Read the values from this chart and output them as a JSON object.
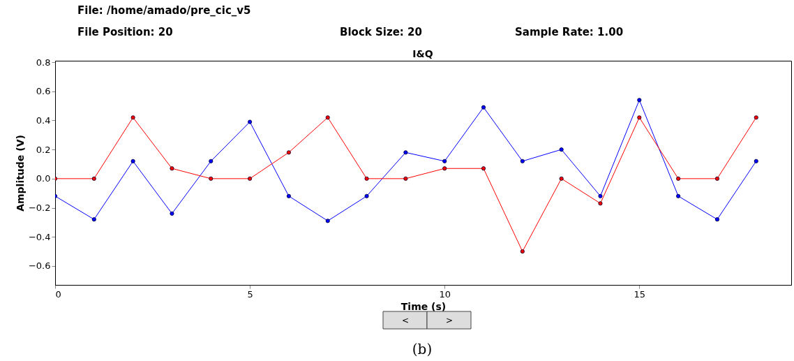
{
  "chart_data": {
    "type": "line",
    "title": "I&Q",
    "xlabel": "Time (s)",
    "ylabel": "Amplitude (V)",
    "annotations": [
      "File: /home/amado/pre_cic_v5",
      "File Position: 20",
      "Block Size: 20",
      "Sample Rate: 1.00",
      "<",
      ">",
      "(b)"
    ],
    "x": [
      0,
      1,
      2,
      3,
      4,
      5,
      6,
      7,
      8,
      9,
      10,
      11,
      12,
      13,
      14,
      15,
      16,
      17,
      18
    ],
    "series": [
      {
        "color": "#0000ff",
        "values": [
          -0.12,
          -0.28,
          0.12,
          -0.24,
          0.12,
          0.39,
          -0.12,
          -0.29,
          -0.12,
          0.18,
          0.12,
          0.49,
          0.12,
          0.2,
          -0.12,
          0.54,
          -0.12,
          -0.28,
          0.12
        ]
      },
      {
        "color": "#ff0000",
        "values": [
          0,
          0,
          0.42,
          0.07,
          0,
          0,
          0.18,
          0.42,
          0,
          0,
          0.07,
          0.07,
          -0.5,
          0,
          -0.17,
          0.42,
          0,
          0,
          0.42
        ]
      }
    ],
    "xlim": [
      0,
      18.9
    ],
    "ylim": [
      -0.73,
      0.81
    ],
    "xticks": [
      0,
      5,
      10,
      15
    ],
    "yticks": [
      {
        "value": -0.6,
        "label": "−0.6"
      },
      {
        "value": -0.4,
        "label": "−0.4"
      },
      {
        "value": -0.2,
        "label": "−0.2"
      },
      {
        "value": 0,
        "label": "0.0"
      },
      {
        "value": 0.2,
        "label": "0.2"
      },
      {
        "value": 0.4,
        "label": "0.4"
      },
      {
        "value": 0.6,
        "label": "0.6"
      },
      {
        "value": 0.8,
        "label": "0.8"
      }
    ],
    "grid": false,
    "legend": false,
    "marker": "circle",
    "line_style": "solid"
  }
}
